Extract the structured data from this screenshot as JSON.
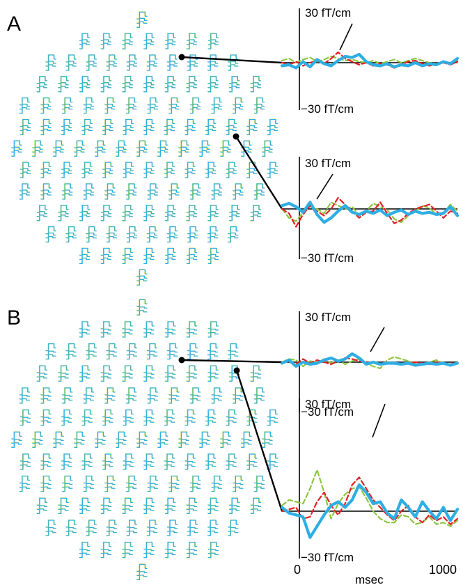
{
  "colors": {
    "blue": "#2eaee3",
    "red": "#e31e24",
    "green": "#8cc63f",
    "black": "#000000"
  },
  "chart_data": {
    "type": "line",
    "x_axis": {
      "label": "msec",
      "ticks": [
        "0",
        "1000"
      ],
      "range": [
        0,
        1000
      ]
    },
    "y_axis": {
      "range": [
        -30,
        30
      ],
      "top_label": "30 fT/cm",
      "bottom_label": "−30 fT/cm"
    },
    "panels": [
      {
        "label": "A",
        "sensor_array": "MEG sensor layout",
        "traces": [
          {
            "x": [
              0,
              40,
              80,
              120,
              160,
              200,
              240,
              280,
              320,
              360,
              400,
              440,
              480,
              520,
              560,
              600,
              640,
              680,
              720,
              760,
              800,
              840,
              880,
              920,
              960,
              1000
            ],
            "series": [
              {
                "color": "blue",
                "style": "solid",
                "values": [
                  -3,
                  -2,
                  -5,
                  1,
                  -4,
                  3,
                  -1,
                  -3,
                  2,
                  6,
                  5,
                  8,
                  1,
                  -2,
                  -3,
                  -1,
                  -4,
                  -2,
                  -3,
                  0,
                  -3,
                  -1,
                  -2,
                  1,
                  -1,
                  4
                ]
              },
              {
                "color": "red",
                "style": "dashed",
                "values": [
                  0,
                  -2,
                  1,
                  -3,
                  0,
                  2,
                  -1,
                  4,
                  10,
                  4,
                  1,
                  -2,
                  0,
                  -3,
                  -1,
                  -2,
                  -5,
                  -2,
                  1,
                  2,
                  -1,
                  -3,
                  -1,
                  0,
                  -2,
                  1
                ]
              },
              {
                "color": "green",
                "style": "dashed",
                "values": [
                  2,
                  4,
                  0,
                  3,
                  5,
                  1,
                  3,
                  6,
                  4,
                  2,
                  3,
                  1,
                  0,
                  2,
                  -1,
                  1,
                  3,
                  0,
                  2,
                  4,
                  2,
                  0,
                  -1,
                  1,
                  0,
                  2
                ]
              }
            ]
          },
          {
            "x": [
              0,
              40,
              80,
              120,
              160,
              200,
              240,
              280,
              320,
              360,
              400,
              440,
              480,
              520,
              560,
              600,
              640,
              680,
              720,
              760,
              800,
              840,
              880,
              920,
              960,
              1000
            ],
            "series": [
              {
                "color": "blue",
                "style": "solid",
                "values": [
                  3,
                  5,
                  2,
                  -3,
                  6,
                  -5,
                  -12,
                  -8,
                  -2,
                  3,
                  -3,
                  -5,
                  -2,
                  -4,
                  -1,
                  -6,
                  -3,
                  -1,
                  -5,
                  -2,
                  -4,
                  -3,
                  -5,
                  -4,
                  2,
                  -6
                ]
              },
              {
                "color": "red",
                "style": "dashed",
                "values": [
                  0,
                  -4,
                  -16,
                  -5,
                  3,
                  -2,
                  -6,
                  0,
                  10,
                  4,
                  -2,
                  -8,
                  -3,
                  -2,
                  6,
                  -4,
                  -13,
                  -10,
                  -4,
                  0,
                  2,
                  4,
                  -2,
                  -8,
                  -2,
                  -4
                ]
              },
              {
                "color": "green",
                "style": "dashed",
                "values": [
                  0,
                  -8,
                  -11,
                  -3,
                  2,
                  0,
                  -4,
                  6,
                  3,
                  0,
                  2,
                  -6,
                  -2,
                  5,
                  2,
                  -1,
                  -9,
                  -12,
                  -6,
                  -2,
                  3,
                  1,
                  -5,
                  -4,
                  4,
                  -2
                ]
              }
            ]
          }
        ]
      },
      {
        "label": "B",
        "sensor_array": "MEG sensor layout",
        "traces": [
          {
            "x": [
              0,
              40,
              80,
              120,
              160,
              200,
              240,
              280,
              320,
              360,
              400,
              440,
              480,
              520,
              560,
              600,
              640,
              680,
              720,
              760,
              800,
              840,
              880,
              920,
              960,
              1000
            ],
            "series": [
              {
                "color": "blue",
                "style": "solid",
                "values": [
                  -1,
                  2,
                  -4,
                  0,
                  -2,
                  -1,
                  2,
                  4,
                  1,
                  3,
                  8,
                  4,
                  -2,
                  0,
                  -2,
                  -1,
                  -1,
                  -2,
                  -1,
                  -3,
                  -2,
                  -1,
                  -2,
                  -1,
                  -3,
                  -1
                ]
              },
              {
                "color": "red",
                "style": "dashed",
                "values": [
                  0,
                  1,
                  -2,
                  3,
                  -1,
                  2,
                  0,
                  -2,
                  1,
                  4,
                  3,
                  1,
                  0,
                  -1,
                  -2,
                  0,
                  -1,
                  -2,
                  -1,
                  0,
                  -1,
                  -2,
                  0,
                  -1,
                  -2,
                  0
                ]
              },
              {
                "color": "green",
                "style": "dashed",
                "values": [
                  0,
                  3,
                  2,
                  -4,
                  1,
                  0,
                  3,
                  -1,
                  2,
                  -2,
                  1,
                  3,
                  -1,
                  -4,
                  -6,
                  2,
                  5,
                  3,
                  1,
                  -1,
                  -2,
                  0,
                  2,
                  -1,
                  -2,
                  -1
                ]
              }
            ]
          },
          {
            "x": [
              0,
              40,
              80,
              120,
              160,
              200,
              240,
              280,
              320,
              360,
              400,
              440,
              480,
              520,
              560,
              600,
              640,
              680,
              720,
              760,
              800,
              840,
              880,
              920,
              960,
              1000
            ],
            "series": [
              {
                "color": "blue",
                "style": "solid",
                "values": [
                  2,
                  -1,
                  -2,
                  -3,
                  -14,
                  -8,
                  -2,
                  3,
                  5,
                  2,
                  6,
                  14,
                  10,
                  4,
                  5,
                  -1,
                  -4,
                  6,
                  2,
                  -3,
                  5,
                  0,
                  -4,
                  2,
                  -5,
                  1
                ]
              },
              {
                "color": "red",
                "style": "dashed",
                "values": [
                  0,
                  1,
                  2,
                  -4,
                  -3,
                  5,
                  10,
                  3,
                  -2,
                  4,
                  14,
                  18,
                  12,
                  6,
                  2,
                  -2,
                  -5,
                  0,
                  3,
                  -3,
                  -6,
                  -2,
                  -5,
                  -3,
                  -7,
                  -4
                ]
              },
              {
                "color": "green",
                "style": "dashed",
                "values": [
                  3,
                  6,
                  5,
                  4,
                  12,
                  22,
                  10,
                  -4,
                  4,
                  9,
                  12,
                  13,
                  7,
                  0,
                  -4,
                  -6,
                  -6,
                  -2,
                  -3,
                  -7,
                  -6,
                  -3,
                  -7,
                  -6,
                  -8,
                  -5
                ]
              }
            ]
          }
        ]
      }
    ]
  }
}
